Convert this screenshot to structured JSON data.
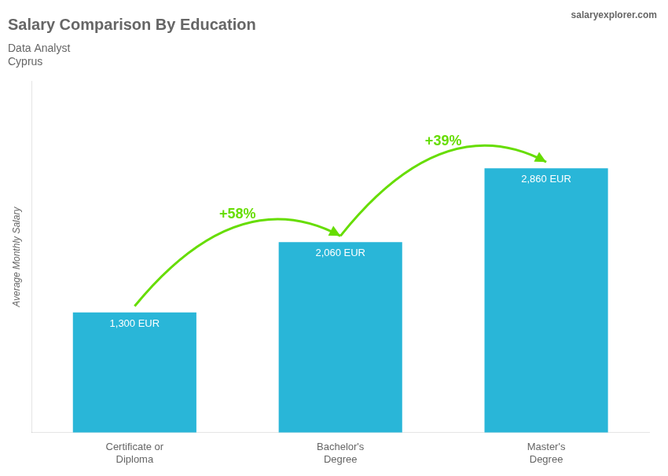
{
  "chart_data": {
    "type": "bar",
    "title": "Salary Comparison By Education",
    "subtitle": [
      "Data Analyst",
      "Cyprus"
    ],
    "source": "salaryexplorer.com",
    "y_label": "Average Monthly Salary",
    "categories": [
      "Certificate or\nDiploma",
      "Bachelor's\nDegree",
      "Master's\nDegree"
    ],
    "values": [
      1300,
      2060,
      2860
    ],
    "value_labels": [
      "1,300 EUR",
      "2,060 EUR",
      "2,860 EUR"
    ],
    "data_labels": true,
    "color": "#29b6d8",
    "annotations": [
      {
        "text": "+58%",
        "color": "#66dd00"
      },
      {
        "text": "+39%",
        "color": "#66dd00"
      }
    ],
    "ylim": [
      0,
      3800
    ],
    "tick_labels": "x",
    "grid": false
  }
}
